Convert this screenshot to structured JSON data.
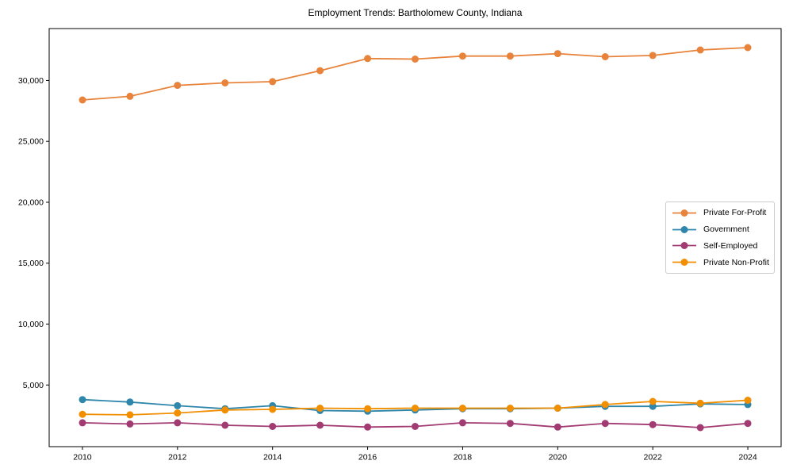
{
  "chart_data": {
    "type": "line",
    "title": "Employment Trends: Bartholomew County, Indiana",
    "xlabel": "",
    "ylabel": "",
    "x": [
      2010,
      2011,
      2012,
      2013,
      2014,
      2015,
      2016,
      2017,
      2018,
      2019,
      2020,
      2021,
      2022,
      2023,
      2024
    ],
    "series": [
      {
        "name": "Private For-Profit",
        "color": "#e8833c",
        "values": [
          28400,
          28700,
          29600,
          29800,
          29900,
          30800,
          31800,
          31750,
          32000,
          32000,
          32200,
          31950,
          32050,
          32500,
          32700
        ]
      },
      {
        "name": "Government",
        "color": "#2e86ab",
        "values": [
          3800,
          3600,
          3300,
          3050,
          3300,
          2900,
          2850,
          2950,
          3050,
          3050,
          3100,
          3250,
          3250,
          3450,
          3400
        ]
      },
      {
        "name": "Self-Employed",
        "color": "#a23b72",
        "values": [
          1900,
          1800,
          1900,
          1700,
          1600,
          1700,
          1550,
          1600,
          1900,
          1850,
          1550,
          1850,
          1750,
          1500,
          1850
        ]
      },
      {
        "name": "Private Non-Profit",
        "color": "#f18f01",
        "values": [
          2600,
          2550,
          2700,
          2950,
          3000,
          3100,
          3050,
          3100,
          3100,
          3100,
          3100,
          3400,
          3650,
          3500,
          3750
        ]
      }
    ],
    "xlim": [
      2009.3,
      2024.7
    ],
    "ylim": [
      -60,
      34260
    ],
    "xticks": [
      2010,
      2012,
      2014,
      2016,
      2018,
      2020,
      2022,
      2024
    ],
    "yticks": [
      5000,
      10000,
      15000,
      20000,
      25000,
      30000
    ],
    "grid": false,
    "legend_position": "center right",
    "marker": "circle"
  }
}
